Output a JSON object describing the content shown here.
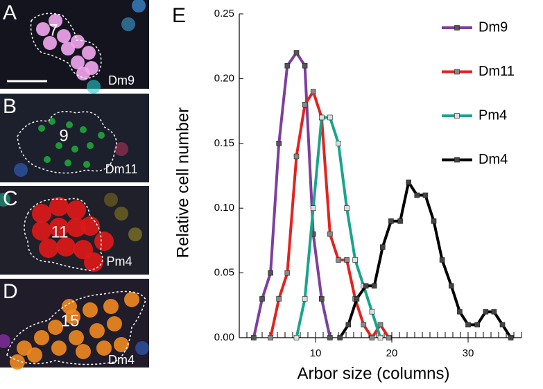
{
  "panels": [
    {
      "label": "A",
      "number": "7",
      "cell_type": "Dm9"
    },
    {
      "label": "B",
      "number": "9",
      "cell_type": "Dm11"
    },
    {
      "label": "C",
      "number": "11",
      "cell_type": "Pm4"
    },
    {
      "label": "D",
      "number": "15",
      "cell_type": "Dm4"
    }
  ],
  "chart_data": {
    "type": "line",
    "panel_label": "E",
    "xlabel": "Arbor size (columns)",
    "ylabel": "Relative cell number",
    "xlim": [
      0,
      37
    ],
    "ylim": [
      0,
      0.25
    ],
    "xticks": [
      10,
      20,
      30
    ],
    "xminor_ticks": [
      1,
      2,
      3,
      4,
      5,
      6,
      7,
      8,
      9,
      10,
      11,
      12,
      13,
      14,
      15,
      16,
      17,
      18,
      19,
      20,
      21,
      22,
      23,
      24,
      25,
      26,
      27,
      28,
      29,
      30,
      31,
      32,
      33,
      34,
      35,
      36,
      37
    ],
    "yticks": [
      {
        "value": 0,
        "label": "0.00"
      },
      {
        "value": 0.05,
        "label": "0.05"
      },
      {
        "value": 0.1,
        "label": "0.10"
      },
      {
        "value": 0.15,
        "label": "0.15"
      },
      {
        "value": 0.2,
        "label": "0.20"
      },
      {
        "value": 0.25,
        "label": "0.25"
      }
    ],
    "legend": "upper right",
    "series": [
      {
        "name": "Dm9",
        "color": "#7d3f9e",
        "marker_color": "#555555",
        "x": [
          1.9,
          3.0,
          4.1,
          5.2,
          6.3,
          7.5,
          8.6,
          9.7,
          10.8,
          11.9
        ],
        "values": [
          0,
          0.03,
          0.05,
          0.15,
          0.21,
          0.22,
          0.21,
          0.08,
          0.03,
          0
        ]
      },
      {
        "name": "Dm11",
        "color": "#e2231f",
        "marker_color": "#888888",
        "x": [
          4.1,
          5.2,
          6.3,
          7.5,
          8.6,
          9.7,
          10.8,
          11.9,
          13.0,
          14.1,
          15.2,
          16.3,
          17.4,
          18.5,
          19.6
        ],
        "values": [
          0,
          0.03,
          0.05,
          0.14,
          0.18,
          0.19,
          0.17,
          0.08,
          0.06,
          0.06,
          0.03,
          0.01,
          0,
          0.01,
          0
        ]
      },
      {
        "name": "Pm4",
        "color": "#19a58b",
        "marker_color": "#dddddd",
        "x": [
          7.5,
          8.6,
          9.7,
          10.8,
          11.9,
          13.0,
          14.1,
          15.2,
          16.3,
          17.4,
          18.5
        ],
        "values": [
          0,
          0.03,
          0.1,
          0.17,
          0.17,
          0.15,
          0.1,
          0.06,
          0.04,
          0.02,
          0
        ]
      },
      {
        "name": "Dm4",
        "color": "#000000",
        "marker_color": "#444444",
        "x": [
          13.2,
          14.3,
          15.4,
          16.6,
          17.7,
          18.8,
          19.9,
          21.1,
          22.2,
          23.3,
          24.4,
          25.5,
          26.6,
          27.8,
          28.9,
          30.0,
          31.2,
          32.3,
          33.4,
          34.5,
          35.6
        ],
        "values": [
          0,
          0.01,
          0.03,
          0.04,
          0.04,
          0.07,
          0.09,
          0.09,
          0.12,
          0.11,
          0.11,
          0.09,
          0.06,
          0.04,
          0.02,
          0.01,
          0.01,
          0.02,
          0.02,
          0.01,
          0
        ]
      }
    ]
  }
}
